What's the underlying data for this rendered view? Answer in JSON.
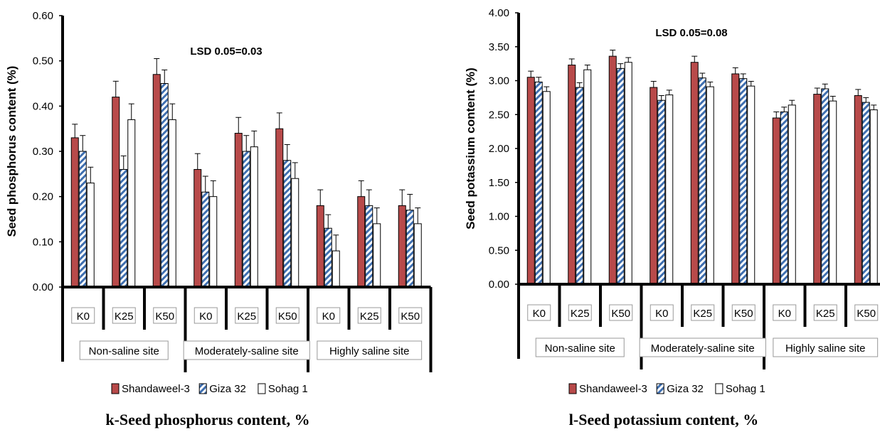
{
  "colors": {
    "series1": "#b84a4a",
    "series2_stripe": "#3f6fb0",
    "series3": "#ffffff",
    "axis": "#000000"
  },
  "chart_data": [
    {
      "type": "bar",
      "ylabel": "Seed phosphorus content (%)",
      "ylim": [
        0,
        0.6
      ],
      "yticks": [
        "0.00",
        "0.10",
        "0.20",
        "0.30",
        "0.40",
        "0.50",
        "0.60"
      ],
      "annotation": "LSD 0.05=0.03",
      "caption": "k-Seed phosphorus content, %",
      "categories": [
        "K0",
        "K25",
        "K50",
        "K0",
        "K25",
        "K50",
        "K0",
        "K25",
        "K50"
      ],
      "groups": [
        "Non-saline site",
        "Moderately-saline site",
        "Highly saline site"
      ],
      "series": [
        {
          "name": "Shandaweel-3",
          "values": [
            0.33,
            0.42,
            0.47,
            0.26,
            0.34,
            0.35,
            0.18,
            0.2,
            0.18
          ],
          "errors": [
            0.03,
            0.035,
            0.035,
            0.035,
            0.035,
            0.035,
            0.035,
            0.035,
            0.035
          ]
        },
        {
          "name": "Giza 32",
          "values": [
            0.3,
            0.26,
            0.45,
            0.21,
            0.3,
            0.28,
            0.13,
            0.18,
            0.17
          ],
          "errors": [
            0.035,
            0.03,
            0.03,
            0.035,
            0.035,
            0.035,
            0.03,
            0.035,
            0.035
          ]
        },
        {
          "name": "Sohag 1",
          "values": [
            0.23,
            0.37,
            0.37,
            0.2,
            0.31,
            0.24,
            0.08,
            0.14,
            0.14
          ],
          "errors": [
            0.035,
            0.035,
            0.035,
            0.035,
            0.035,
            0.035,
            0.035,
            0.035,
            0.035
          ]
        }
      ]
    },
    {
      "type": "bar",
      "ylabel": "Seed potassium content (%)",
      "ylim": [
        0,
        4.0
      ],
      "yticks": [
        "0.00",
        "0.50",
        "1.00",
        "1.50",
        "2.00",
        "2.50",
        "3.00",
        "3.50",
        "4.00"
      ],
      "annotation": "LSD 0.05=0.08",
      "caption": "l-Seed potassium content, %",
      "categories": [
        "K0",
        "K25",
        "K50",
        "K0",
        "K25",
        "K50",
        "K0",
        "K25",
        "K50"
      ],
      "groups": [
        "Non-saline site",
        "Moderately-saline site",
        "Highly saline site"
      ],
      "series": [
        {
          "name": "Shandaweel-3",
          "values": [
            3.05,
            3.23,
            3.36,
            2.9,
            3.27,
            3.1,
            2.45,
            2.8,
            2.78
          ],
          "errors": [
            0.09,
            0.09,
            0.09,
            0.09,
            0.09,
            0.09,
            0.09,
            0.09,
            0.09
          ]
        },
        {
          "name": "Giza 32",
          "values": [
            2.98,
            2.9,
            3.18,
            2.71,
            3.04,
            3.03,
            2.54,
            2.88,
            2.68
          ],
          "errors": [
            0.07,
            0.07,
            0.07,
            0.07,
            0.07,
            0.07,
            0.07,
            0.07,
            0.07
          ]
        },
        {
          "name": "Sohag 1",
          "values": [
            2.84,
            3.16,
            3.27,
            2.79,
            2.91,
            2.92,
            2.64,
            2.7,
            2.57
          ],
          "errors": [
            0.07,
            0.07,
            0.07,
            0.07,
            0.07,
            0.07,
            0.07,
            0.07,
            0.07
          ]
        }
      ]
    }
  ]
}
